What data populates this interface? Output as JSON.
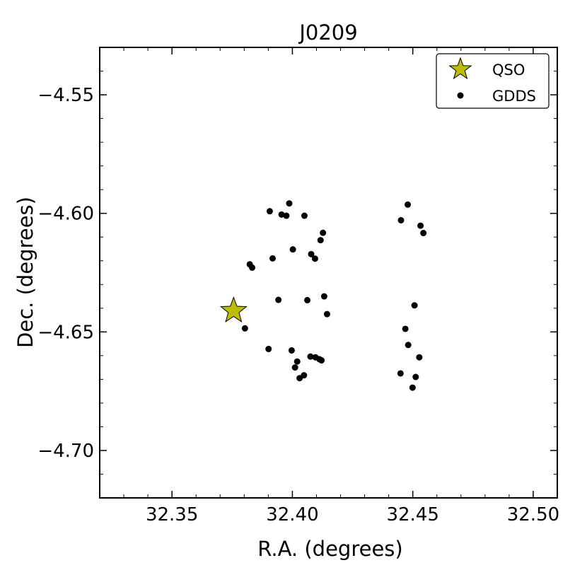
{
  "chart_data": {
    "type": "scatter",
    "title": "J0209",
    "xlabel": "R.A. (degrees)",
    "ylabel": "Dec. (degrees)",
    "xlim": [
      32.32,
      32.51
    ],
    "ylim": [
      -4.72,
      -4.53
    ],
    "x_ticks": [
      32.35,
      32.4,
      32.45,
      32.5
    ],
    "x_tick_labels": [
      "32.35",
      "32.40",
      "32.45",
      "32.50"
    ],
    "y_ticks": [
      -4.55,
      -4.6,
      -4.65,
      -4.7
    ],
    "y_tick_labels": [
      "−4.55",
      "−4.60",
      "−4.65",
      "−4.70"
    ],
    "grid": false,
    "legend_position": "top-right",
    "series": [
      {
        "name": "QSO",
        "marker": "star",
        "color": "#bcbc00",
        "points": [
          [
            32.3756,
            -4.6411
          ]
        ]
      },
      {
        "name": "GDDS",
        "marker": "circle",
        "color": "#000000",
        "points": [
          [
            32.3803,
            -4.6485
          ],
          [
            32.3823,
            -4.6215
          ],
          [
            32.3833,
            -4.6229
          ],
          [
            32.3901,
            -4.6572
          ],
          [
            32.3906,
            -4.5991
          ],
          [
            32.3918,
            -4.619
          ],
          [
            32.3942,
            -4.6365
          ],
          [
            32.3955,
            -4.6005
          ],
          [
            32.3975,
            -4.601
          ],
          [
            32.3987,
            -4.5958
          ],
          [
            32.3997,
            -4.6578
          ],
          [
            32.4002,
            -4.6152
          ],
          [
            32.4011,
            -4.665
          ],
          [
            32.402,
            -4.6625
          ],
          [
            32.403,
            -4.6695
          ],
          [
            32.4048,
            -4.6683
          ],
          [
            32.405,
            -4.601
          ],
          [
            32.4062,
            -4.6366
          ],
          [
            32.4075,
            -4.6604
          ],
          [
            32.4078,
            -4.6172
          ],
          [
            32.4094,
            -4.6191
          ],
          [
            32.4096,
            -4.6607
          ],
          [
            32.4112,
            -4.6615
          ],
          [
            32.4117,
            -4.6113
          ],
          [
            32.4121,
            -4.662
          ],
          [
            32.4127,
            -4.6082
          ],
          [
            32.4132,
            -4.635
          ],
          [
            32.4144,
            -4.6425
          ],
          [
            32.4449,
            -4.6675
          ],
          [
            32.4451,
            -4.6029
          ],
          [
            32.4469,
            -4.6487
          ],
          [
            32.4479,
            -4.5963
          ],
          [
            32.4481,
            -4.6555
          ],
          [
            32.4499,
            -4.6735
          ],
          [
            32.4507,
            -4.6388
          ],
          [
            32.4512,
            -4.669
          ],
          [
            32.4527,
            -4.6607
          ],
          [
            32.4532,
            -4.6052
          ],
          [
            32.4544,
            -4.6083
          ]
        ]
      }
    ]
  }
}
